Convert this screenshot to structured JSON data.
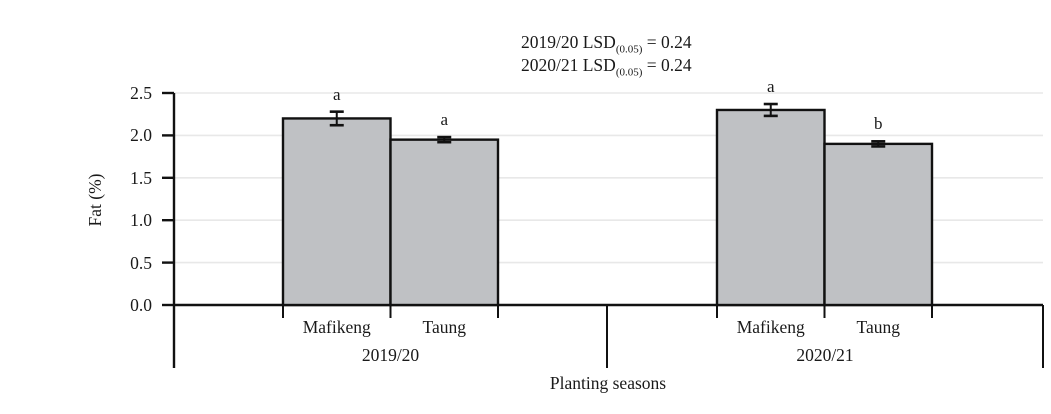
{
  "chart_data": {
    "type": "bar",
    "title": "",
    "ylabel": "Fat (%)",
    "xlabel": "Planting seasons",
    "ylim": [
      0,
      2.5
    ],
    "yticks": [
      "0.0",
      "0.5",
      "1.0",
      "1.5",
      "2.0",
      "2.5"
    ],
    "grid": true,
    "legend_position": "none",
    "groups": [
      {
        "label": "2019/20",
        "bars": [
          {
            "category": "Mafikeng",
            "value": 2.2,
            "error": 0.08,
            "sig_letter": "a"
          },
          {
            "category": "Taung",
            "value": 1.95,
            "error": 0.03,
            "sig_letter": "a"
          }
        ]
      },
      {
        "label": "2020/21",
        "bars": [
          {
            "category": "Mafikeng",
            "value": 2.3,
            "error": 0.07,
            "sig_letter": "a"
          },
          {
            "category": "Taung",
            "value": 1.9,
            "error": 0.03,
            "sig_letter": "b"
          }
        ]
      }
    ],
    "annotations": [
      {
        "prefix": "2019/20 LSD",
        "sub": "(0.05)",
        "suffix": " = 0.24"
      },
      {
        "prefix": "2020/21 LSD",
        "sub": "(0.05)",
        "suffix": " = 0.24"
      }
    ],
    "colors": {
      "bar_fill": "#bfc1c4",
      "bar_stroke": "#111111",
      "axis": "#111111",
      "gridline": "#e8e8e8",
      "text": "#1a1a1a",
      "background": "#ffffff"
    }
  }
}
